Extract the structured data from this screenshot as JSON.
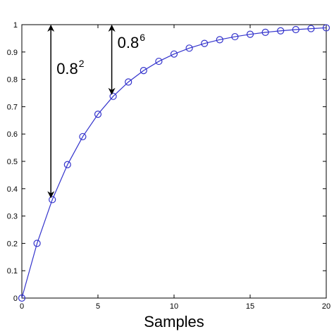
{
  "chart_data": {
    "type": "line",
    "xlabel": "Samples",
    "ylabel": "",
    "title": "",
    "xlim": [
      0,
      20
    ],
    "ylim": [
      0,
      1
    ],
    "x_ticks": [
      "0",
      "5",
      "10",
      "15",
      "20"
    ],
    "y_ticks": [
      "0",
      "0.1",
      "0.2",
      "0.3",
      "0.4",
      "0.5",
      "0.6",
      "0.7",
      "0.8",
      "0.9",
      "1"
    ],
    "grid": false,
    "marker": "circle",
    "line_color": "#3333cc",
    "x": [
      0,
      1,
      2,
      3,
      4,
      5,
      6,
      7,
      8,
      9,
      10,
      11,
      12,
      13,
      14,
      15,
      16,
      17,
      18,
      19,
      20
    ],
    "series": [
      {
        "values": [
          0,
          0.2,
          0.36,
          0.488,
          0.5904,
          0.6723,
          0.7379,
          0.7903,
          0.8322,
          0.8658,
          0.8926,
          0.9141,
          0.9313,
          0.945,
          0.956,
          0.9648,
          0.9719,
          0.9775,
          0.982,
          0.9856,
          0.9885
        ]
      }
    ],
    "annotations": [
      {
        "base": "0.8",
        "exponent": "2",
        "x": 2,
        "y_from": 1,
        "y_to": 0.36
      },
      {
        "base": "0.8",
        "exponent": "6",
        "x": 6,
        "y_from": 1,
        "y_to": 0.7379
      }
    ]
  }
}
